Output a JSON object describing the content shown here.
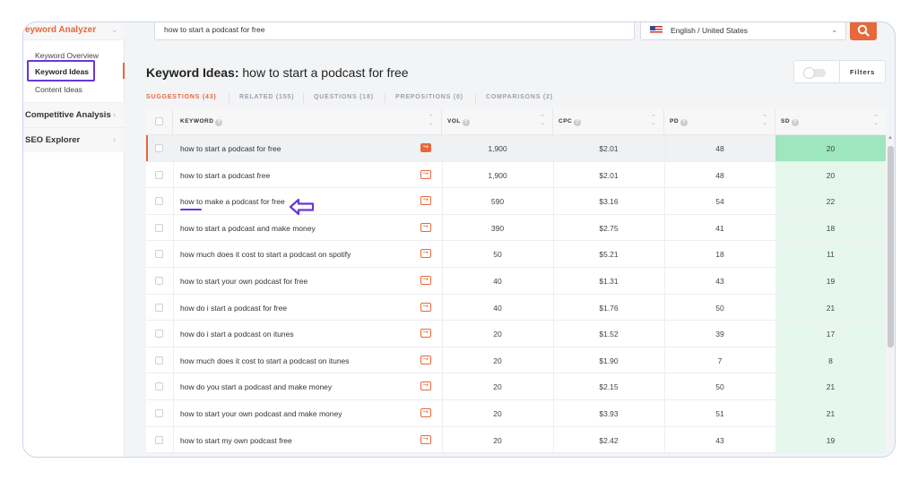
{
  "sidebar": {
    "header": "eyword Analyzer",
    "subitems": [
      "Keyword Overview",
      "Keyword Ideas",
      "Content Ideas"
    ],
    "sections": [
      "Competitive Analysis",
      "SEO Explorer"
    ]
  },
  "search": {
    "value": "how to start a podcast for free"
  },
  "language": {
    "value": "English / United States"
  },
  "page": {
    "title_bold": "Keyword Ideas:",
    "title_query": " how to start a podcast for free"
  },
  "filters_label": "Filters",
  "tabs": [
    "SUGGESTIONS (43)",
    "RELATED (155)",
    "QUESTIONS (18)",
    "PREPOSITIONS (0)",
    "COMPARISONS (2)"
  ],
  "columns": [
    "KEYWORD",
    "VOL",
    "CPC",
    "PD",
    "SD"
  ],
  "rows": [
    {
      "keyword": "how to start a podcast for free",
      "vol": "1,900",
      "cpc": "$2.01",
      "pd": "48",
      "sd": "20"
    },
    {
      "keyword": "how to start a podcast free",
      "vol": "1,900",
      "cpc": "$2.01",
      "pd": "48",
      "sd": "20"
    },
    {
      "keyword": "how to make a podcast for free",
      "vol": "590",
      "cpc": "$3.16",
      "pd": "54",
      "sd": "22"
    },
    {
      "keyword": "how to start a podcast and make money",
      "vol": "390",
      "cpc": "$2.75",
      "pd": "41",
      "sd": "18"
    },
    {
      "keyword": "how much does it cost to start a podcast on spotify",
      "vol": "50",
      "cpc": "$5.21",
      "pd": "18",
      "sd": "11"
    },
    {
      "keyword": "how to start your own podcast for free",
      "vol": "40",
      "cpc": "$1.31",
      "pd": "43",
      "sd": "19"
    },
    {
      "keyword": "how do i start a podcast for free",
      "vol": "40",
      "cpc": "$1.76",
      "pd": "50",
      "sd": "21"
    },
    {
      "keyword": "how do i start a podcast on itunes",
      "vol": "20",
      "cpc": "$1.52",
      "pd": "39",
      "sd": "17"
    },
    {
      "keyword": "how much does it cost to start a podcast on itunes",
      "vol": "20",
      "cpc": "$1.90",
      "pd": "7",
      "sd": "8"
    },
    {
      "keyword": "how do you start a podcast and make money",
      "vol": "20",
      "cpc": "$2.15",
      "pd": "50",
      "sd": "21"
    },
    {
      "keyword": "how to start your own podcast and make money",
      "vol": "20",
      "cpc": "$3.93",
      "pd": "51",
      "sd": "21"
    },
    {
      "keyword": "how to start my own podcast free",
      "vol": "20",
      "cpc": "$2.42",
      "pd": "43",
      "sd": "19"
    }
  ],
  "colors": {
    "accent": "#e8673b",
    "highlight": "#6a36d9",
    "sd_cell": "#e6f8ee",
    "sd_cell_active": "#9ee6bd"
  }
}
